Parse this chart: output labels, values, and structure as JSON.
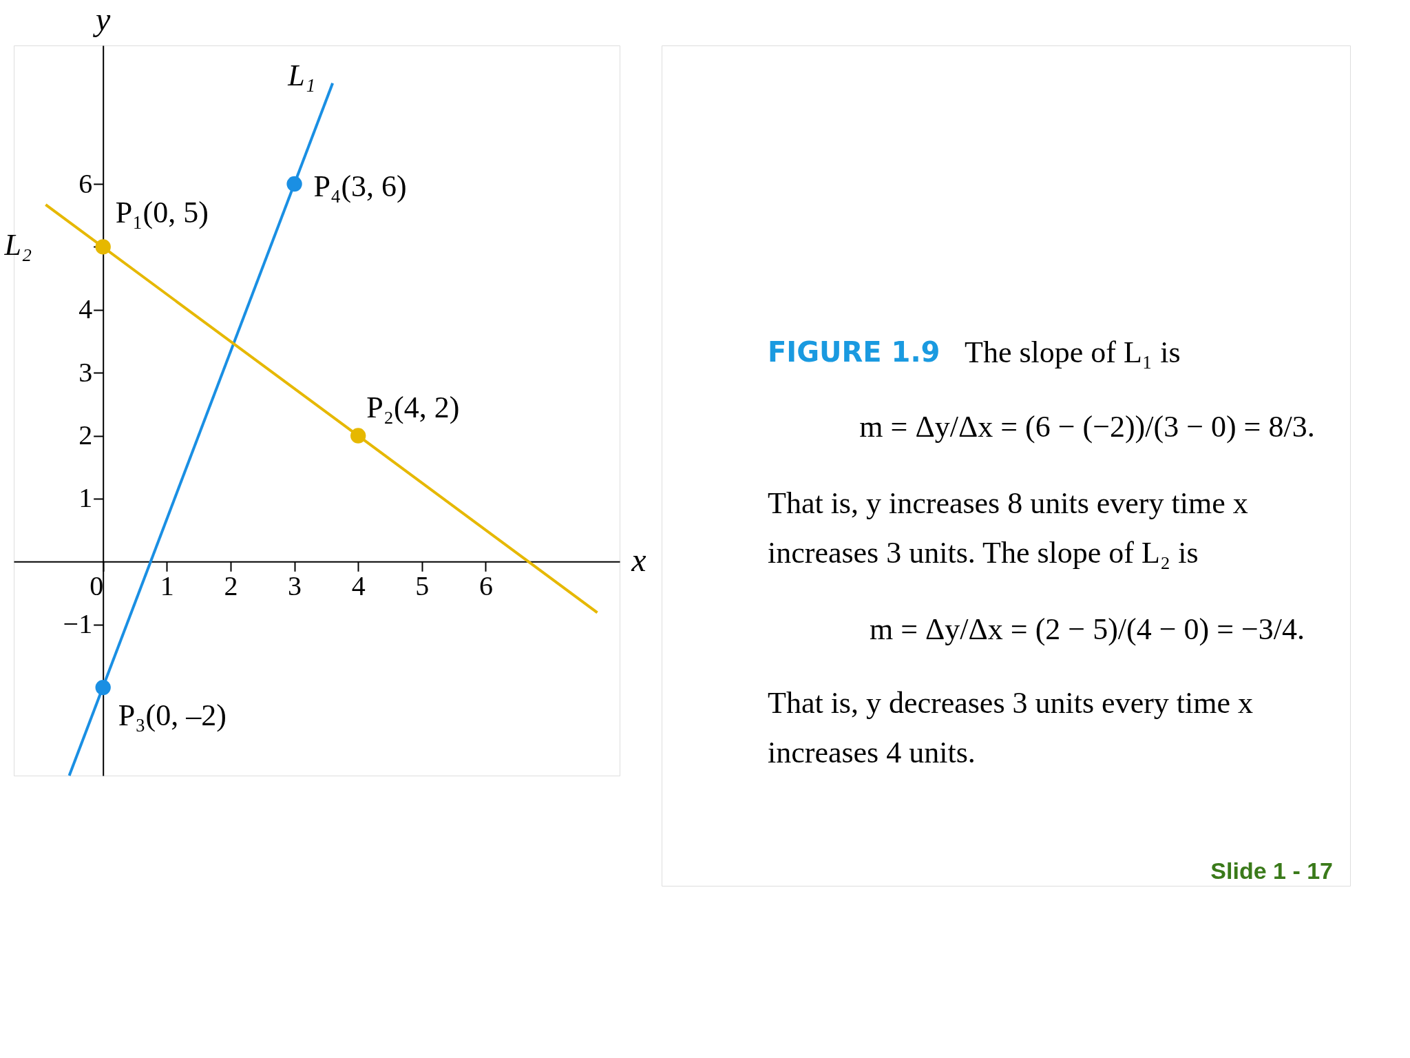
{
  "chart_data": {
    "type": "line",
    "xlabel": "x",
    "ylabel": "y",
    "xlim": [
      -1.4,
      8.1
    ],
    "ylim": [
      -3.4,
      8.2
    ],
    "xticks": [
      0,
      1,
      2,
      3,
      4,
      5,
      6
    ],
    "yticks": [
      -1,
      1,
      2,
      3,
      4,
      {
        "value": 5,
        "label": null
      },
      6
    ],
    "grid": false,
    "series": [
      {
        "name": "L₁",
        "color": "#1a8fe3",
        "x": [
          -0.53,
          3.6
        ],
        "values": [
          -3.4,
          7.6
        ]
      },
      {
        "name": "L₂",
        "color": "#e6b800",
        "x": [
          -0.9,
          7.75
        ],
        "values": [
          5.67,
          -0.81
        ]
      },
      {
        "type": "scatter",
        "color": "#1a8fe3",
        "marker": "circle",
        "x": [
          0,
          3
        ],
        "values": [
          -2,
          6
        ]
      },
      {
        "type": "scatter",
        "color": "#e6b800",
        "marker": "circle",
        "x": [
          0,
          4
        ],
        "values": [
          5,
          2
        ]
      }
    ],
    "annotations": [
      {
        "text": "P₁(0, 5)",
        "x": 0,
        "y": 5
      },
      {
        "text": "P₂(4, 2)",
        "x": 4,
        "y": 2
      },
      {
        "text": "P₃(0, –2)",
        "x": 0,
        "y": -2
      },
      {
        "text": "P₄(3, 6)",
        "x": 3,
        "y": 6
      },
      "FIGURE 1.9",
      "The slope of L₁ is",
      "m = Δy/Δx = (6 − (−2))/(3 − 0) = 8/3.",
      "That is, y increases 8 units every time x",
      "increases 3 units. The slope of L₂ is",
      "m = Δy/Δx = (2 − 5)/(4 − 0) = −3/4.",
      "That is, y decreases 3 units every time x",
      "increases 4 units.",
      "Slide  1 -  17"
    ]
  }
}
